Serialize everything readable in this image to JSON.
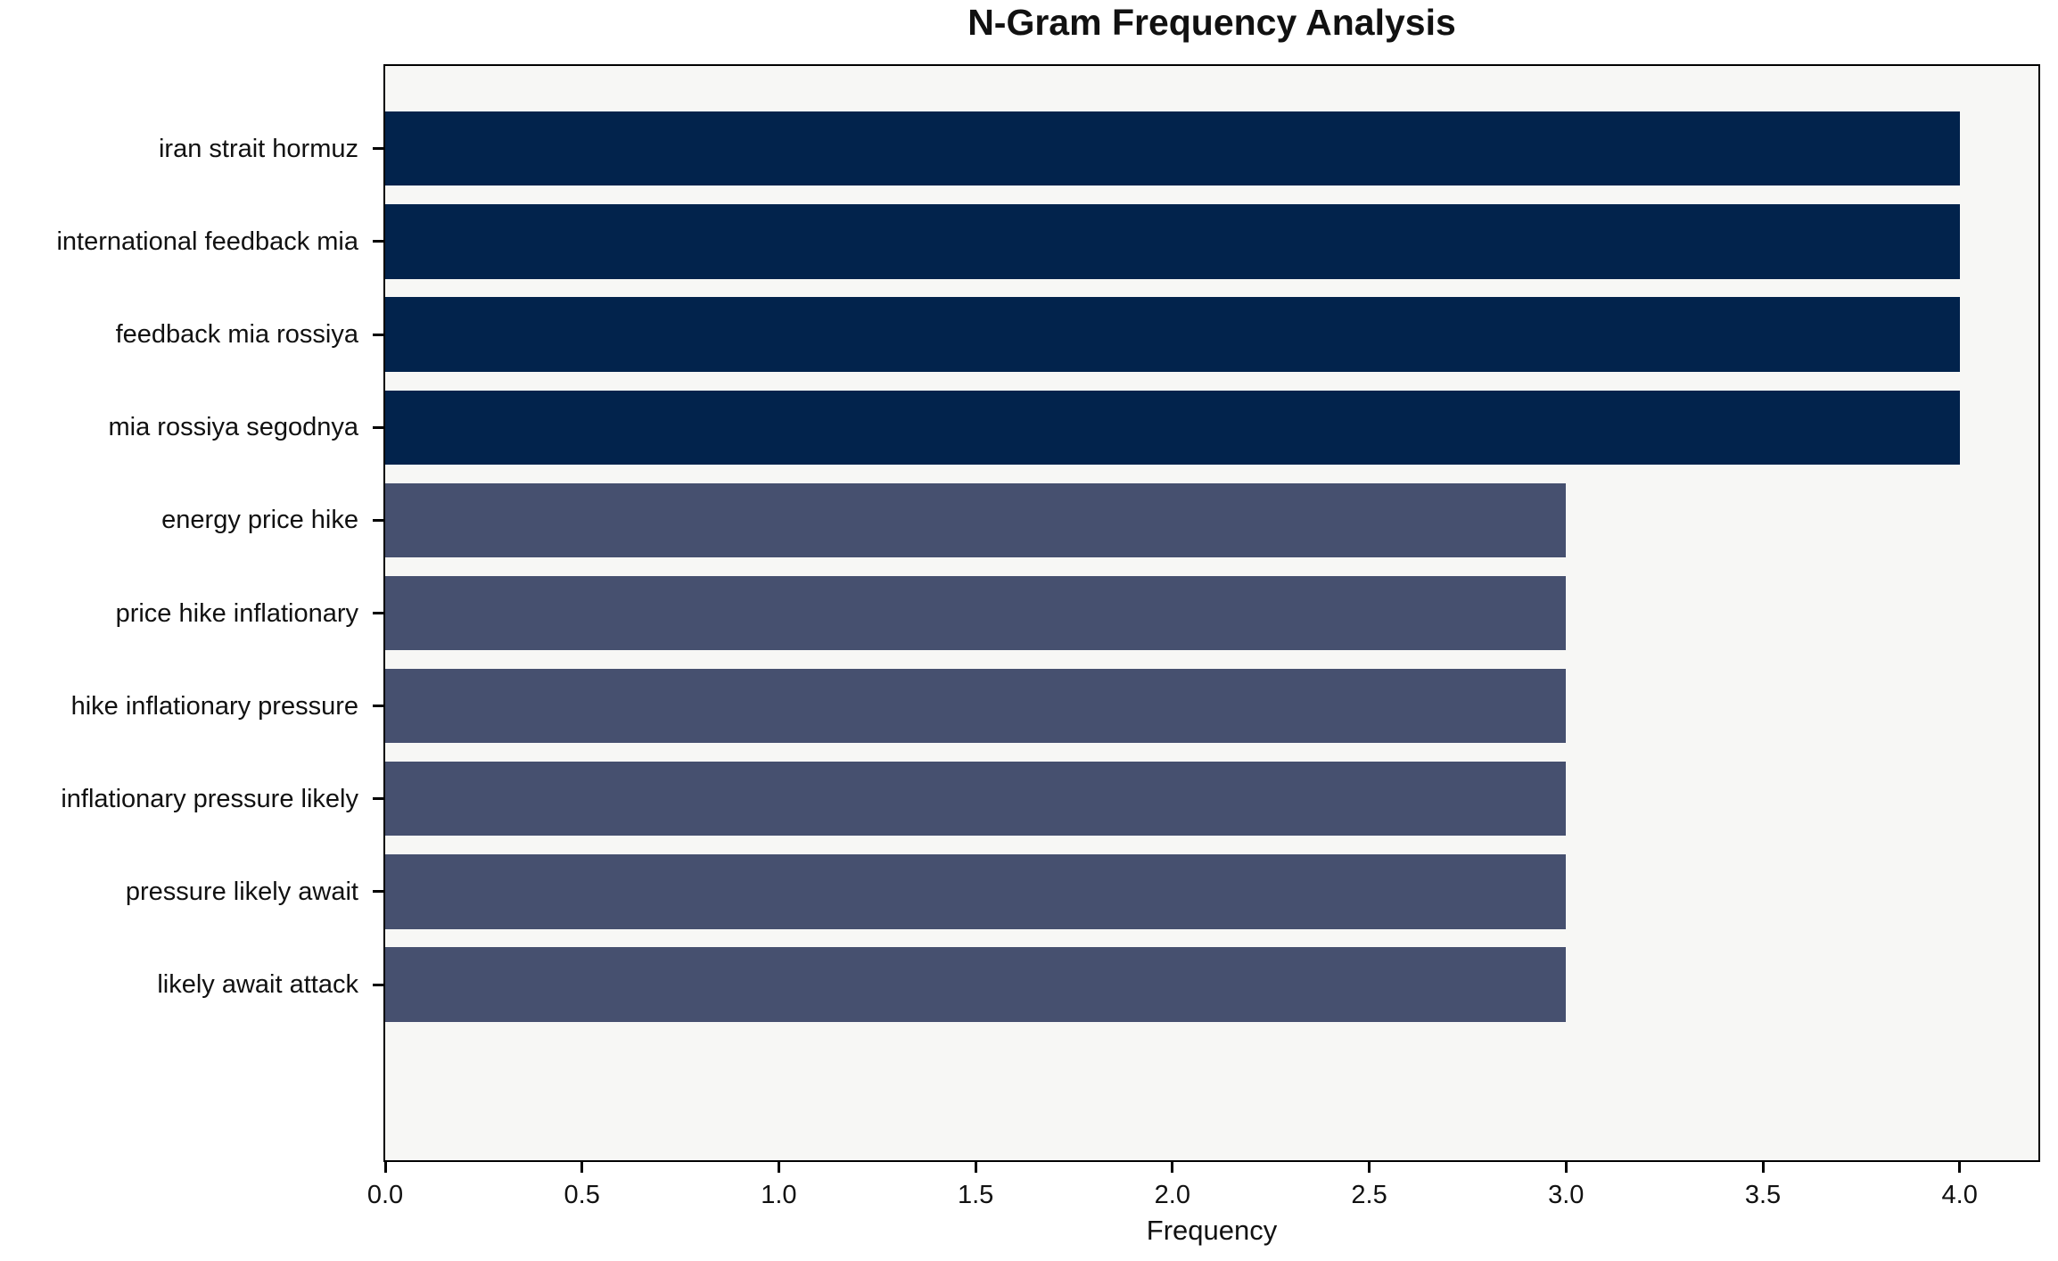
{
  "title": "N-Gram Frequency Analysis",
  "chart_data": {
    "type": "bar",
    "orientation": "horizontal",
    "title": "N-Gram Frequency Analysis",
    "xlabel": "Frequency",
    "ylabel": "",
    "categories": [
      "iran strait hormuz",
      "international feedback mia",
      "feedback mia rossiya",
      "mia rossiya segodnya",
      "energy price hike",
      "price hike inflationary",
      "hike inflationary pressure",
      "inflationary pressure likely",
      "pressure likely await",
      "likely await attack"
    ],
    "values": [
      4,
      4,
      4,
      4,
      3,
      3,
      3,
      3,
      3,
      3
    ],
    "bar_colors": [
      "#02234c",
      "#02234c",
      "#02234c",
      "#02234c",
      "#46506f",
      "#46506f",
      "#46506f",
      "#46506f",
      "#46506f",
      "#46506f"
    ],
    "xlim": [
      0,
      4.2
    ],
    "xticks": [
      0.0,
      0.5,
      1.0,
      1.5,
      2.0,
      2.5,
      3.0,
      3.5,
      4.0
    ],
    "xtick_labels": [
      "0.0",
      "0.5",
      "1.0",
      "1.5",
      "2.0",
      "2.5",
      "3.0",
      "3.5",
      "4.0"
    ],
    "grid": false,
    "legend": null,
    "bar_width_fraction": 0.8,
    "plot_background": "#f7f7f5",
    "figure_background": "#ffffff",
    "spine_color": "#000000"
  }
}
